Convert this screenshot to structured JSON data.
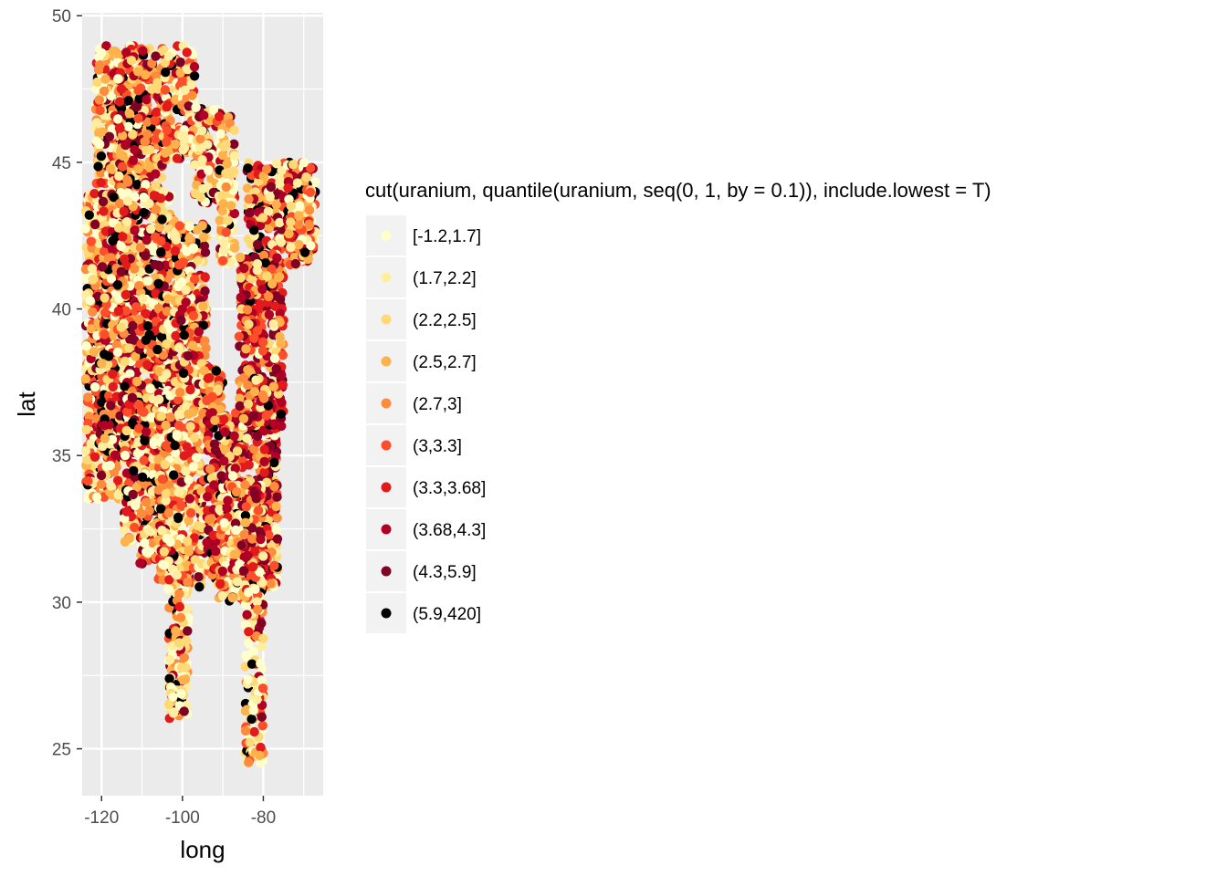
{
  "chart_data": {
    "type": "scatter",
    "title": "",
    "xlabel": "long",
    "ylabel": "lat",
    "xlim": [
      -124.8,
      -65.2
    ],
    "ylim": [
      23.4,
      50.1
    ],
    "x_ticks": [
      -120,
      -100,
      -80
    ],
    "x_tick_labels": [
      "-120",
      "-100",
      "-80"
    ],
    "y_ticks": [
      25,
      30,
      35,
      40,
      45,
      50
    ],
    "y_tick_labels": [
      "25",
      "30",
      "35",
      "40",
      "45",
      "50"
    ],
    "grid": true,
    "legend": {
      "title": "cut(uranium, quantile(uranium, seq(0, 1, by = 0.1)), include.lowest = T)",
      "placement": "right",
      "entries": [
        {
          "label": "[-1.2,1.7]",
          "color": "#FFFFCC"
        },
        {
          "label": "(1.7,2.2]",
          "color": "#FFEDA0"
        },
        {
          "label": "(2.2,2.5]",
          "color": "#FED976"
        },
        {
          "label": "(2.5,2.7]",
          "color": "#FEB24C"
        },
        {
          "label": "(2.7,3]",
          "color": "#FD8D3C"
        },
        {
          "label": "(3,3.3]",
          "color": "#FC4E2A"
        },
        {
          "label": "(3.3,3.68]",
          "color": "#E31A1C"
        },
        {
          "label": "(3.68,4.3]",
          "color": "#B10026"
        },
        {
          "label": "(4.3,5.9]",
          "color": "#800026"
        },
        {
          "label": "(5.9,420]",
          "color": "#000000"
        }
      ]
    },
    "regions": [
      {
        "x": [
          -121.5,
          -110.5
        ],
        "y": [
          44.2,
          49.0
        ],
        "weights": [
          3,
          2,
          2,
          2,
          2,
          1,
          1,
          1,
          1,
          1
        ]
      },
      {
        "x": [
          -116.0,
          -104.5
        ],
        "y": [
          44.0,
          48.9
        ],
        "weights": [
          1,
          1,
          2,
          2,
          2,
          2,
          2,
          2,
          2,
          2
        ]
      },
      {
        "x": [
          -104.5,
          -100.5
        ],
        "y": [
          45.0,
          49.0
        ],
        "weights": [
          2,
          2,
          2,
          2,
          2,
          2,
          2,
          1,
          1,
          1
        ]
      },
      {
        "x": [
          -100.5,
          -97.0
        ],
        "y": [
          45.2,
          49.0
        ],
        "weights": [
          3,
          3,
          2,
          2,
          2,
          2,
          2,
          1,
          1,
          1
        ]
      },
      {
        "x": [
          -97.0,
          -90.0
        ],
        "y": [
          43.6,
          46.9
        ],
        "weights": [
          4,
          3,
          2,
          2,
          1,
          1,
          1,
          1,
          1,
          1
        ]
      },
      {
        "x": [
          -91.0,
          -87.0
        ],
        "y": [
          41.5,
          46.6
        ],
        "weights": [
          4,
          3,
          2,
          2,
          1,
          1,
          1,
          1,
          1,
          1
        ]
      },
      {
        "x": [
          -84.0,
          -67.0
        ],
        "y": [
          42.0,
          45.0
        ],
        "weights": [
          2,
          2,
          2,
          2,
          2,
          2,
          2,
          2,
          2,
          2
        ]
      },
      {
        "x": [
          -124.0,
          -114.0
        ],
        "y": [
          33.5,
          44.0
        ],
        "weights": [
          3,
          3,
          2,
          2,
          2,
          2,
          1,
          1,
          1,
          1
        ]
      },
      {
        "x": [
          -120.0,
          -102.0
        ],
        "y": [
          35.0,
          44.0
        ],
        "weights": [
          2,
          2,
          2,
          2,
          2,
          2,
          2,
          2,
          2,
          2
        ]
      },
      {
        "x": [
          -114.5,
          -102.0
        ],
        "y": [
          32.0,
          37.0
        ],
        "weights": [
          3,
          3,
          2,
          2,
          2,
          2,
          2,
          2,
          2,
          2
        ]
      },
      {
        "x": [
          -110.5,
          -101.5
        ],
        "y": [
          31.2,
          32.5
        ],
        "weights": [
          3,
          2,
          2,
          2,
          2,
          2,
          1,
          1,
          1,
          1
        ]
      },
      {
        "x": [
          -106.0,
          -94.5
        ],
        "y": [
          30.5,
          38.0
        ],
        "weights": [
          3,
          3,
          2,
          2,
          2,
          2,
          1,
          1,
          1,
          1
        ]
      },
      {
        "x": [
          -103.5,
          -98.5
        ],
        "y": [
          26.0,
          31.0
        ],
        "weights": [
          4,
          3,
          3,
          2,
          2,
          1,
          1,
          1,
          1,
          1
        ]
      },
      {
        "x": [
          -102.0,
          -94.0
        ],
        "y": [
          37.0,
          42.9
        ],
        "weights": [
          2,
          2,
          2,
          2,
          2,
          2,
          2,
          2,
          1,
          1
        ]
      },
      {
        "x": [
          -95.0,
          -90.0
        ],
        "y": [
          36.0,
          38.0
        ],
        "weights": [
          1,
          1,
          2,
          2,
          2,
          2,
          2,
          1,
          1,
          1
        ]
      },
      {
        "x": [
          -94.0,
          -76.5
        ],
        "y": [
          30.5,
          36.5
        ],
        "weights": [
          1,
          1,
          1,
          2,
          2,
          2,
          2,
          3,
          3,
          2
        ]
      },
      {
        "x": [
          -91.0,
          -80.0
        ],
        "y": [
          30.0,
          34.0
        ],
        "weights": [
          2,
          2,
          2,
          2,
          2,
          2,
          2,
          2,
          2,
          1
        ]
      },
      {
        "x": [
          -86.0,
          -75.0
        ],
        "y": [
          36.0,
          42.0
        ],
        "weights": [
          1,
          1,
          1,
          2,
          2,
          2,
          3,
          3,
          3,
          1
        ]
      },
      {
        "x": [
          -84.5,
          -80.0
        ],
        "y": [
          24.5,
          30.5
        ],
        "weights": [
          4,
          3,
          2,
          2,
          1,
          1,
          1,
          1,
          1,
          1
        ]
      },
      {
        "x": [
          -74.0,
          -68.0
        ],
        "y": [
          41.5,
          45.0
        ],
        "weights": [
          3,
          2,
          2,
          2,
          2,
          2,
          2,
          2,
          1,
          1
        ]
      }
    ]
  }
}
